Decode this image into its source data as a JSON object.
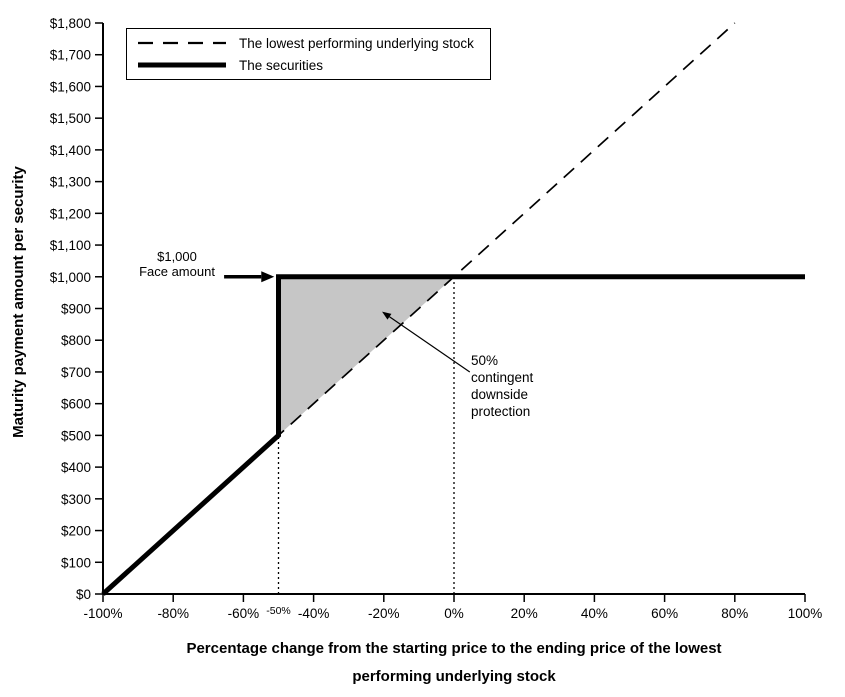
{
  "chart_data": {
    "type": "line",
    "title": "",
    "xlabel_line1": "Percentage change from the starting price to the ending price of the lowest",
    "xlabel_line2": "performing underlying stock",
    "ylabel": "Maturity payment amount per security",
    "xlim": [
      -100,
      100
    ],
    "ylim": [
      0,
      1800
    ],
    "grid": false,
    "legend_position": "top-left-inside",
    "x_ticks": [
      {
        "value": -100,
        "label": "-100%"
      },
      {
        "value": -80,
        "label": "-80%"
      },
      {
        "value": -60,
        "label": "-60%"
      },
      {
        "value": -40,
        "label": "-40%"
      },
      {
        "value": -20,
        "label": "-20%"
      },
      {
        "value": 0,
        "label": "0%"
      },
      {
        "value": 20,
        "label": "20%"
      },
      {
        "value": 40,
        "label": "40%"
      },
      {
        "value": 60,
        "label": "60%"
      },
      {
        "value": 80,
        "label": "80%"
      },
      {
        "value": 100,
        "label": "100%"
      }
    ],
    "x_extra_tick": {
      "value": -50,
      "label": "-50%"
    },
    "y_ticks": [
      {
        "value": 0,
        "label": "$0"
      },
      {
        "value": 100,
        "label": "$100"
      },
      {
        "value": 200,
        "label": "$200"
      },
      {
        "value": 300,
        "label": "$300"
      },
      {
        "value": 400,
        "label": "$400"
      },
      {
        "value": 500,
        "label": "$500"
      },
      {
        "value": 600,
        "label": "$600"
      },
      {
        "value": 700,
        "label": "$700"
      },
      {
        "value": 800,
        "label": "$800"
      },
      {
        "value": 900,
        "label": "$900"
      },
      {
        "value": 1000,
        "label": "$1,000"
      },
      {
        "value": 1100,
        "label": "$1,100"
      },
      {
        "value": 1200,
        "label": "$1,200"
      },
      {
        "value": 1300,
        "label": "$1,300"
      },
      {
        "value": 1400,
        "label": "$1,400"
      },
      {
        "value": 1500,
        "label": "$1,500"
      },
      {
        "value": 1600,
        "label": "$1,600"
      },
      {
        "value": 1700,
        "label": "$1,700"
      },
      {
        "value": 1800,
        "label": "$1,800"
      }
    ],
    "series": [
      {
        "name": "The lowest performing underlying stock",
        "style": "dashed",
        "points": [
          [
            -100,
            0
          ],
          [
            80,
            1800
          ]
        ]
      },
      {
        "name": "The securities",
        "style": "solid-thick",
        "points": [
          [
            -100,
            0
          ],
          [
            -50,
            500
          ],
          [
            -50,
            1000
          ],
          [
            100,
            1000
          ]
        ]
      }
    ],
    "shaded_region": {
      "color": "#c6c6c6",
      "points": [
        [
          -50,
          1000
        ],
        [
          0,
          1000
        ],
        [
          -50,
          500
        ]
      ]
    },
    "dotted_vlines": [
      {
        "x": -50,
        "y_from": 0,
        "y_to": 1000
      },
      {
        "x": 0,
        "y_from": 0,
        "y_to": 1000
      }
    ],
    "arrows": [
      {
        "name": "face-amount-arrow",
        "from": [
          -65.5,
          1000
        ],
        "to": [
          -51.2,
          1000
        ],
        "stroke_width": 3.5,
        "head_len": 13,
        "head_w": 11
      },
      {
        "name": "protection-arrow",
        "from": [
          4.5,
          700
        ],
        "to": [
          -20.5,
          890
        ],
        "stroke_width": 1.2,
        "head_len": 9,
        "head_w": 7
      }
    ]
  },
  "legend": {
    "items": [
      {
        "label": "The lowest performing underlying stock",
        "style": "dashed"
      },
      {
        "label": "The securities",
        "style": "solid"
      }
    ]
  },
  "annotations": {
    "face_amount": {
      "line1": "$1,000",
      "line2": "Face amount"
    },
    "protection": {
      "lines": [
        "50%",
        "contingent",
        "downside",
        "protection"
      ]
    }
  },
  "colors": {
    "line": "#000000",
    "shade": "#c6c6c6",
    "background": "#ffffff"
  }
}
